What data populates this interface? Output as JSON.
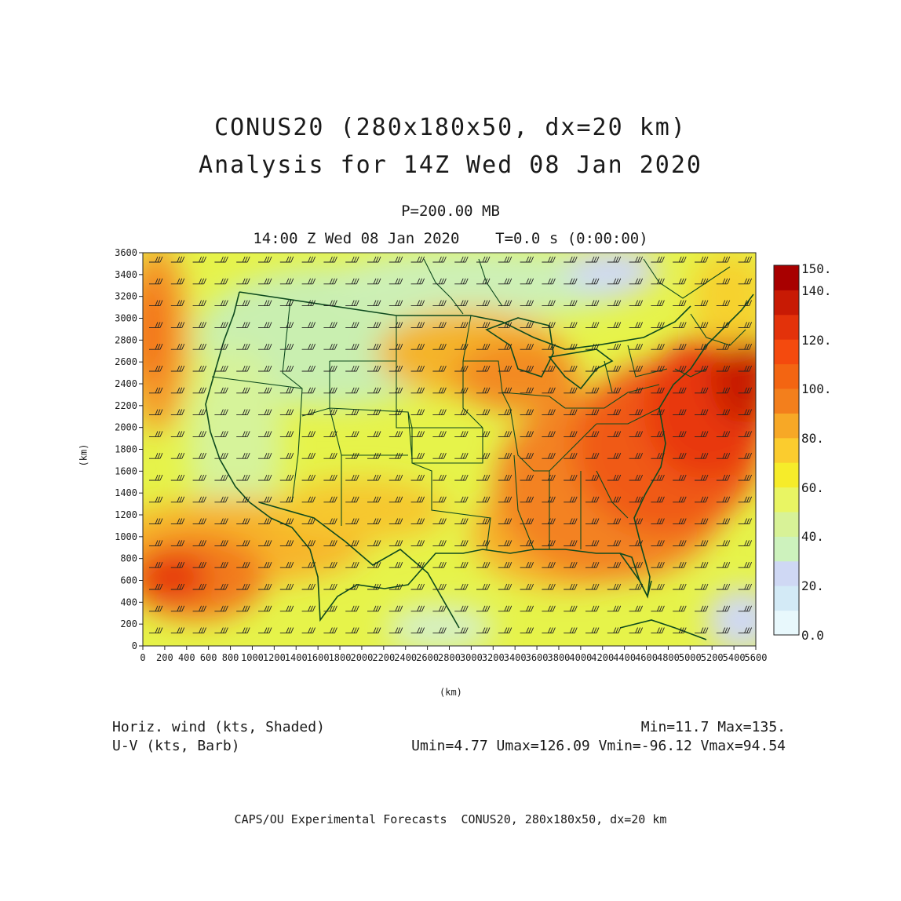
{
  "title": {
    "line1": "CONUS20 (280x180x50, dx=20 km)",
    "line2": "Analysis for 14Z Wed 08 Jan 2020"
  },
  "subtitle": {
    "level": "P=200.00 MB",
    "time": "14:00 Z Wed 08 Jan 2020    T=0.0 s (0:00:00)"
  },
  "axes": {
    "x_label": "(km)",
    "y_label": "(km)",
    "x_ticks": [
      "0",
      "200",
      "400",
      "600",
      "800",
      "1000",
      "1200",
      "1400",
      "1600",
      "1800",
      "2000",
      "2200",
      "2400",
      "2600",
      "2800",
      "3000",
      "3200",
      "3400",
      "3600",
      "3800",
      "4000",
      "4200",
      "4400",
      "4600",
      "4800",
      "5000",
      "5200",
      "5400",
      "5600"
    ],
    "y_ticks": [
      "0",
      "200",
      "400",
      "600",
      "800",
      "1000",
      "1200",
      "1400",
      "1600",
      "1800",
      "2000",
      "2200",
      "2400",
      "2600",
      "2800",
      "3000",
      "3200",
      "3400",
      "3600"
    ],
    "x_range_km": [
      0,
      5600
    ],
    "y_range_km": [
      0,
      3600
    ]
  },
  "colorbar": {
    "labels": [
      "0.0",
      "20.",
      "40.",
      "60.",
      "80.",
      "100.",
      "120.",
      "140.",
      "150."
    ],
    "colors": [
      "#e8f8fc",
      "#d3eaf6",
      "#cfd8f4",
      "#cdf2bd",
      "#d8f297",
      "#e9f563",
      "#f6ec2a",
      "#fbcc2e",
      "#f7a826",
      "#f37f1c",
      "#f36512",
      "#f44a0e",
      "#e3320a",
      "#c81a04",
      "#a80000"
    ]
  },
  "footer": {
    "left_line1": "Horiz. wind (kts, Shaded)",
    "left_line2": "U-V (kts, Barb)",
    "right_line1": "Min=11.7 Max=135.",
    "right_line2": "Umin=4.77 Umax=126.09 Vmin=-96.12 Vmax=94.54"
  },
  "credit": "CAPS/OU Experimental Forecasts  CONUS20, 280x180x50, dx=20 km",
  "colors": {
    "boundary": "#0e4a1e",
    "barb": "#222222"
  }
}
